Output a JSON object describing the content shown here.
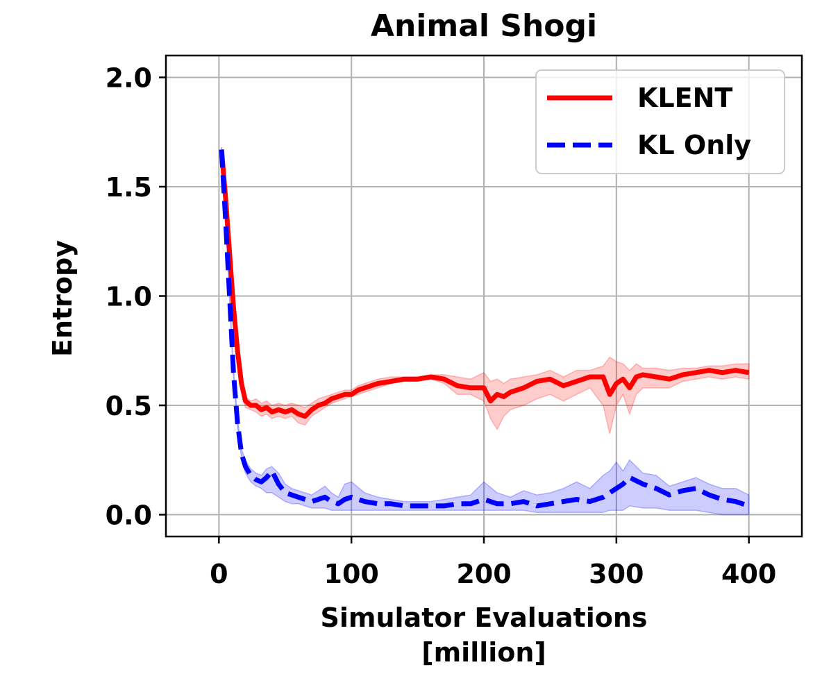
{
  "chart_data": {
    "type": "line",
    "title": "Animal Shogi",
    "xlabel": [
      "Simulator Evaluations",
      "[million]"
    ],
    "ylabel": "Entropy",
    "xlim": [
      -40,
      440
    ],
    "ylim": [
      -0.1,
      2.1
    ],
    "xticks": [
      0,
      100,
      200,
      300,
      400
    ],
    "xtick_labels": [
      "0",
      "100",
      "200",
      "300",
      "400"
    ],
    "yticks": [
      0.0,
      0.5,
      1.0,
      1.5,
      2.0
    ],
    "ytick_labels": [
      "0.0",
      "0.5",
      "1.0",
      "1.5",
      "2.0"
    ],
    "grid": true,
    "legend_position": "top-right",
    "series": [
      {
        "name": "KLENT",
        "color": "#ff0000",
        "linestyle": "solid",
        "x": [
          2,
          5,
          8,
          11,
          14,
          17,
          20,
          24,
          28,
          32,
          36,
          40,
          45,
          50,
          55,
          60,
          65,
          70,
          75,
          80,
          85,
          90,
          95,
          100,
          105,
          110,
          120,
          130,
          140,
          150,
          160,
          170,
          180,
          190,
          200,
          205,
          210,
          215,
          220,
          230,
          240,
          250,
          260,
          270,
          280,
          290,
          295,
          300,
          305,
          310,
          315,
          320,
          330,
          340,
          350,
          360,
          370,
          380,
          390,
          400
        ],
        "y": [
          1.67,
          1.45,
          1.2,
          0.95,
          0.75,
          0.6,
          0.52,
          0.5,
          0.5,
          0.48,
          0.49,
          0.47,
          0.48,
          0.47,
          0.48,
          0.46,
          0.45,
          0.48,
          0.5,
          0.51,
          0.53,
          0.54,
          0.55,
          0.55,
          0.57,
          0.58,
          0.6,
          0.61,
          0.62,
          0.62,
          0.63,
          0.62,
          0.59,
          0.58,
          0.58,
          0.52,
          0.55,
          0.54,
          0.56,
          0.58,
          0.61,
          0.62,
          0.59,
          0.61,
          0.63,
          0.63,
          0.55,
          0.6,
          0.62,
          0.58,
          0.63,
          0.64,
          0.63,
          0.62,
          0.64,
          0.65,
          0.66,
          0.65,
          0.66,
          0.65
        ],
        "band_lo": [
          1.67,
          1.44,
          1.18,
          0.93,
          0.73,
          0.58,
          0.49,
          0.48,
          0.47,
          0.45,
          0.46,
          0.44,
          0.45,
          0.44,
          0.45,
          0.42,
          0.41,
          0.45,
          0.47,
          0.49,
          0.51,
          0.52,
          0.53,
          0.54,
          0.55,
          0.56,
          0.58,
          0.6,
          0.61,
          0.61,
          0.62,
          0.6,
          0.55,
          0.55,
          0.52,
          0.44,
          0.39,
          0.45,
          0.48,
          0.5,
          0.53,
          0.55,
          0.52,
          0.55,
          0.58,
          0.5,
          0.37,
          0.5,
          0.55,
          0.46,
          0.55,
          0.58,
          0.58,
          0.58,
          0.61,
          0.62,
          0.63,
          0.62,
          0.63,
          0.62
        ],
        "band_hi": [
          1.68,
          1.46,
          1.22,
          0.97,
          0.77,
          0.62,
          0.54,
          0.52,
          0.53,
          0.51,
          0.52,
          0.5,
          0.51,
          0.5,
          0.51,
          0.5,
          0.49,
          0.51,
          0.53,
          0.54,
          0.55,
          0.56,
          0.57,
          0.57,
          0.59,
          0.6,
          0.62,
          0.63,
          0.63,
          0.63,
          0.64,
          0.64,
          0.63,
          0.62,
          0.65,
          0.61,
          0.62,
          0.6,
          0.62,
          0.63,
          0.64,
          0.66,
          0.63,
          0.66,
          0.66,
          0.68,
          0.72,
          0.7,
          0.69,
          0.66,
          0.69,
          0.67,
          0.67,
          0.66,
          0.67,
          0.67,
          0.68,
          0.68,
          0.69,
          0.69
        ]
      },
      {
        "name": "KL Only",
        "color": "#0000ff",
        "linestyle": "dashed",
        "x": [
          2,
          5,
          8,
          11,
          14,
          17,
          20,
          24,
          28,
          32,
          36,
          40,
          45,
          50,
          55,
          60,
          65,
          70,
          75,
          80,
          85,
          90,
          95,
          100,
          110,
          120,
          130,
          140,
          150,
          160,
          170,
          180,
          190,
          200,
          210,
          220,
          230,
          240,
          250,
          260,
          270,
          280,
          290,
          295,
          300,
          305,
          310,
          320,
          330,
          340,
          350,
          360,
          370,
          380,
          390,
          400
        ],
        "y": [
          1.67,
          1.35,
          1.0,
          0.65,
          0.42,
          0.28,
          0.22,
          0.18,
          0.16,
          0.15,
          0.17,
          0.2,
          0.14,
          0.1,
          0.09,
          0.08,
          0.07,
          0.06,
          0.07,
          0.08,
          0.06,
          0.05,
          0.07,
          0.08,
          0.06,
          0.05,
          0.05,
          0.04,
          0.04,
          0.04,
          0.04,
          0.05,
          0.05,
          0.07,
          0.05,
          0.05,
          0.06,
          0.04,
          0.05,
          0.06,
          0.07,
          0.06,
          0.08,
          0.1,
          0.12,
          0.14,
          0.17,
          0.14,
          0.12,
          0.09,
          0.11,
          0.12,
          0.09,
          0.07,
          0.06,
          0.04
        ],
        "band_lo": [
          1.67,
          1.34,
          0.98,
          0.63,
          0.4,
          0.26,
          0.19,
          0.15,
          0.13,
          0.12,
          0.1,
          0.1,
          0.08,
          0.06,
          0.05,
          0.05,
          0.04,
          0.03,
          0.03,
          0.03,
          0.02,
          0.02,
          0.02,
          0.02,
          0.02,
          0.02,
          0.02,
          0.02,
          0.02,
          0.02,
          0.02,
          0.02,
          0.02,
          0.02,
          0.02,
          0.02,
          0.02,
          0.01,
          0.01,
          0.01,
          0.01,
          0.01,
          0.01,
          0.02,
          0.02,
          0.02,
          0.04,
          0.03,
          0.03,
          0.02,
          0.02,
          0.02,
          0.01,
          0.0,
          0.0,
          0.0
        ],
        "band_hi": [
          1.68,
          1.36,
          1.02,
          0.67,
          0.44,
          0.3,
          0.25,
          0.21,
          0.19,
          0.18,
          0.21,
          0.22,
          0.19,
          0.14,
          0.12,
          0.11,
          0.1,
          0.09,
          0.11,
          0.13,
          0.1,
          0.08,
          0.14,
          0.15,
          0.1,
          0.08,
          0.07,
          0.06,
          0.06,
          0.06,
          0.07,
          0.08,
          0.09,
          0.15,
          0.1,
          0.08,
          0.11,
          0.09,
          0.1,
          0.12,
          0.15,
          0.12,
          0.18,
          0.2,
          0.24,
          0.2,
          0.25,
          0.19,
          0.18,
          0.13,
          0.15,
          0.17,
          0.14,
          0.12,
          0.12,
          0.09
        ]
      }
    ]
  }
}
